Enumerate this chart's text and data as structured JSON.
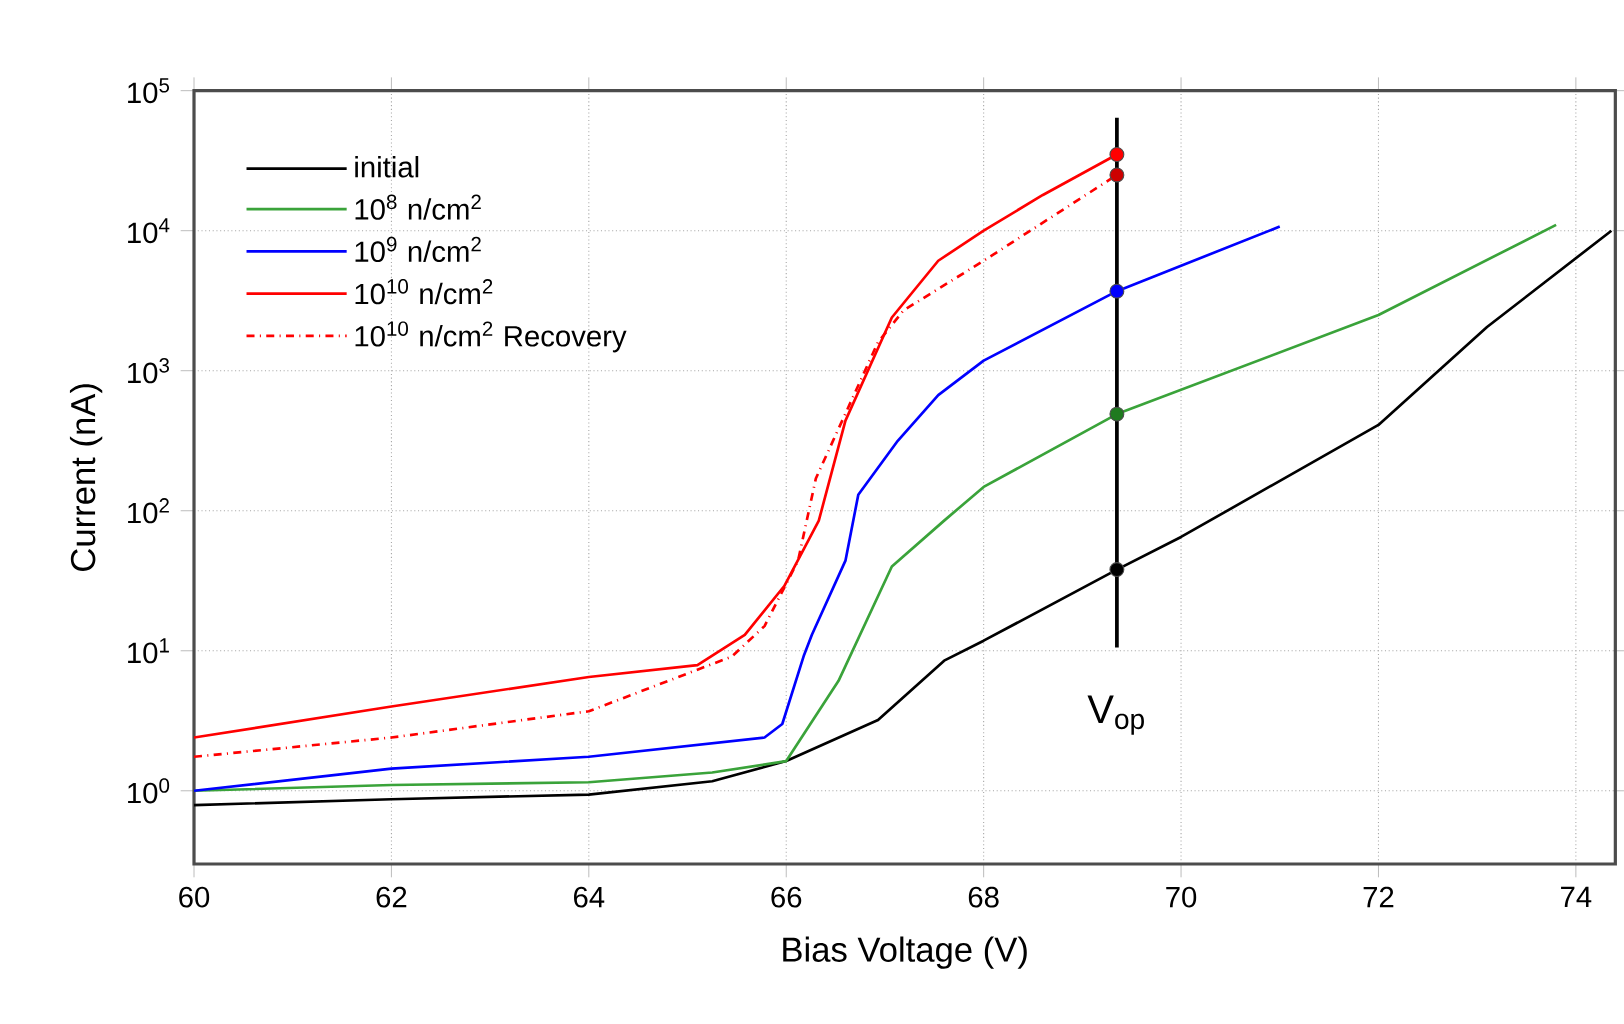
{
  "chart_data": {
    "type": "line",
    "xlabel": "Bias Voltage (V)",
    "ylabel": "Current (nA)",
    "xlim": [
      60,
      74.4
    ],
    "xticks": [
      60,
      62,
      64,
      66,
      68,
      70,
      72,
      74
    ],
    "ylim": [
      0.3,
      100000
    ],
    "log": "y",
    "yticks": [
      {
        "value": 1,
        "label": "10$^{0}$"
      },
      {
        "value": 10,
        "label": "10$^{1}$"
      },
      {
        "value": 100,
        "label": "10$^{2}$"
      },
      {
        "value": 1000,
        "label": "10$^{3}$"
      },
      {
        "value": 10000,
        "label": "10$^{4}$"
      },
      {
        "value": 100000,
        "label": "10$^{5}$"
      }
    ],
    "grid": true,
    "legend": "top left",
    "series": [
      {
        "name": "initial",
        "color": "#000000",
        "x": [
          60,
          62,
          64,
          65.25,
          66,
          66.93,
          67.6,
          68,
          69.35,
          70,
          72,
          73.1,
          74.36
        ],
        "values": [
          0.79,
          0.87,
          0.94,
          1.17,
          1.63,
          3.2,
          8.5,
          11.8,
          38,
          65,
          410,
          2050,
          10000
        ]
      },
      {
        "name": "10$^{8}$ n/cm$^{2}$",
        "color": "#3aa33a",
        "x": [
          60,
          62,
          64,
          65.25,
          66,
          66.53,
          67.07,
          67.6,
          68,
          69.35,
          72,
          73.8
        ],
        "values": [
          1.0,
          1.1,
          1.15,
          1.35,
          1.63,
          6.1,
          40,
          85,
          148,
          490,
          2500,
          11000
        ]
      },
      {
        "name": "10$^{9}$ n/cm$^{2}$",
        "color": "#0000ff",
        "x": [
          60,
          62,
          64,
          65.78,
          65.96,
          66.18,
          66.26,
          66.6,
          66.73,
          67.13,
          67.54,
          68,
          69.35,
          71
        ],
        "values": [
          1.0,
          1.44,
          1.75,
          2.4,
          3.0,
          9.3,
          13,
          44,
          130,
          316,
          670,
          1180,
          3700,
          10700
        ]
      },
      {
        "name": "10$^{10}$ n/cm$^{2}$",
        "color": "#ff0000",
        "x": [
          60,
          62,
          64,
          65.1,
          65.58,
          65.98,
          66.33,
          66.6,
          67.07,
          67.54,
          68,
          68.6,
          69.35
        ],
        "values": [
          2.4,
          4.0,
          6.5,
          7.9,
          13,
          29,
          85,
          440,
          2400,
          6100,
          10000,
          18000,
          35000
        ]
      },
      {
        "name": "10$^{10}$ n/cm$^{2}$ Recovery",
        "color": "#ff0000",
        "line_style": "dashed",
        "x": [
          60,
          62,
          64,
          65.45,
          65.78,
          66.12,
          66.3,
          66.93,
          67.19,
          68,
          69.35
        ],
        "values": [
          1.75,
          2.4,
          3.7,
          9.1,
          15,
          44,
          170,
          1600,
          2700,
          6100,
          25000
        ]
      },
      {
        "type": "scatter",
        "marker": "circle",
        "x": [
          69.35,
          69.35,
          69.35,
          69.35,
          69.35
        ],
        "values": [
          38,
          490,
          3700,
          35000,
          25000
        ],
        "colors": [
          "#000000",
          "#1f7a1f",
          "#0000ff",
          "#ff0000",
          "#cc0000"
        ]
      }
    ],
    "ref_lines": [
      {
        "axis": "x",
        "value": 69.35,
        "label": "V$_{op}$",
        "color": "#000000"
      }
    ]
  }
}
